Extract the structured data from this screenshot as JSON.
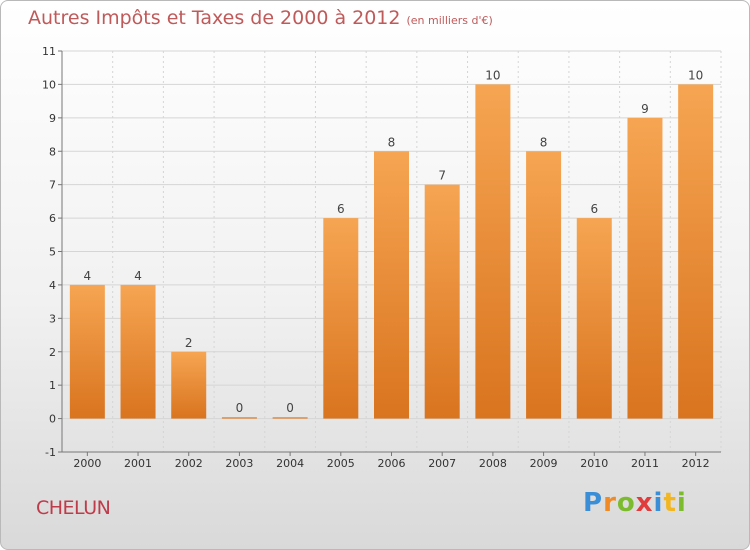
{
  "title": "Autres Impôts et Taxes de 2000 à 2012",
  "subtitle": "(en milliers d'€)",
  "city": "CHELUN",
  "logo_letters": [
    "P",
    "r",
    "o",
    "x",
    "i",
    "t",
    "i"
  ],
  "colors": {
    "bar_top": "#f6a552",
    "bar_bottom": "#d9741f",
    "grid": "#d5d5d5",
    "axis": "#777777"
  },
  "chart_data": {
    "type": "bar",
    "categories": [
      "2000",
      "2001",
      "2002",
      "2003",
      "2004",
      "2005",
      "2006",
      "2007",
      "2008",
      "2009",
      "2010",
      "2011",
      "2012"
    ],
    "values": [
      4,
      4,
      2,
      0,
      0,
      6,
      8,
      7,
      10,
      8,
      6,
      9,
      10
    ],
    "data_labels": [
      "4",
      "4",
      "2",
      "0",
      "0",
      "6",
      "8",
      "7",
      "10",
      "8",
      "6",
      "9",
      "10"
    ],
    "y_ticks": [
      "-1",
      "0",
      "1",
      "2",
      "3",
      "4",
      "5",
      "6",
      "7",
      "8",
      "9",
      "10",
      "11"
    ],
    "ylim": [
      -1,
      11
    ],
    "grid": true
  }
}
